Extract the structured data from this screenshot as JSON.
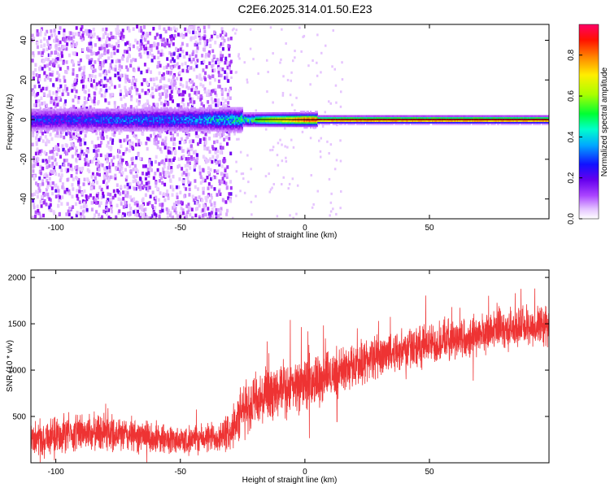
{
  "title": "C2E6.2025.314.01.50.E23",
  "chart_data": [
    {
      "type": "heatmap",
      "xlabel": "Height of straight line (km)",
      "ylabel": "Frequency (Hz)",
      "xlim": [
        -110,
        98
      ],
      "ylim": [
        -50,
        48
      ],
      "x_ticks": [
        -100,
        -50,
        0,
        50
      ],
      "x_tick_labels": [
        "-100",
        "-50",
        "0",
        "50"
      ],
      "y_ticks": [
        -40,
        -20,
        0,
        20,
        40
      ],
      "y_tick_labels": [
        "-40",
        "-20",
        "0",
        "20",
        "40"
      ],
      "colorbar": {
        "label": "Normalized spectral amplitude",
        "range": [
          0,
          0.95
        ],
        "ticks": [
          0,
          0.2,
          0.4,
          0.6,
          0.8
        ],
        "tick_labels": [
          "0.0",
          "0.2",
          "0.4",
          "0.6",
          "0.8"
        ],
        "colormap": [
          "#ffffff",
          "#cc88ff",
          "#8800ee",
          "#2222ff",
          "#00ccff",
          "#00ee55",
          "#99ee00",
          "#ffee00",
          "#ff8800",
          "#ff0000",
          "#ff0077"
        ]
      },
      "description_series": {
        "noise_region_x": [
          -110,
          -30
        ],
        "peak_frequency_hz": 0,
        "band_centers_x": [
          -100,
          -75,
          -50,
          -25,
          0,
          25,
          50,
          75,
          95
        ],
        "band_peak_amplitude": [
          0.25,
          0.3,
          0.3,
          0.45,
          0.85,
          0.9,
          0.9,
          0.9,
          0.9
        ]
      }
    },
    {
      "type": "line",
      "xlabel": "Height of straight line (km)",
      "ylabel": "SNR (10 * v/v)",
      "xlim": [
        -110,
        98
      ],
      "ylim": [
        0,
        2080
      ],
      "x_ticks": [
        -100,
        -50,
        0,
        50
      ],
      "x_tick_labels": [
        "-100",
        "-50",
        "0",
        "50"
      ],
      "y_ticks": [
        500,
        1000,
        1500,
        2000
      ],
      "y_tick_labels": [
        "500",
        "1000",
        "1500",
        "2000"
      ],
      "series": [
        {
          "color": "#ee3333",
          "trend_x": [
            -110,
            -95,
            -80,
            -65,
            -50,
            -40,
            -30,
            -25,
            -20,
            -10,
            0,
            10,
            20,
            30,
            40,
            50,
            60,
            70,
            80,
            90,
            98
          ],
          "trend_y": [
            250,
            320,
            330,
            280,
            240,
            260,
            320,
            560,
            650,
            760,
            850,
            950,
            1060,
            1160,
            1230,
            1280,
            1340,
            1390,
            1440,
            1470,
            1480
          ],
          "noise_amplitude": [
            180,
            200,
            200,
            180,
            150,
            160,
            200,
            300,
            300,
            280,
            280,
            260,
            240,
            230,
            220,
            220,
            220,
            220,
            220,
            220,
            220
          ]
        }
      ]
    }
  ]
}
